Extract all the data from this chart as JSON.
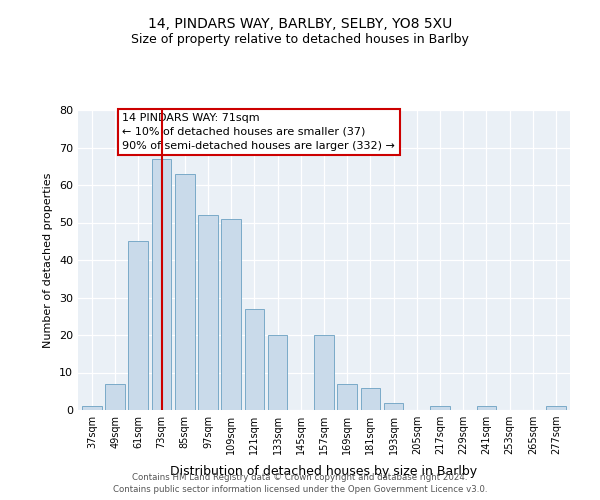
{
  "title1": "14, PINDARS WAY, BARLBY, SELBY, YO8 5XU",
  "title2": "Size of property relative to detached houses in Barlby",
  "xlabel": "Distribution of detached houses by size in Barlby",
  "ylabel": "Number of detached properties",
  "bins": [
    "37sqm",
    "49sqm",
    "61sqm",
    "73sqm",
    "85sqm",
    "97sqm",
    "109sqm",
    "121sqm",
    "133sqm",
    "145sqm",
    "157sqm",
    "169sqm",
    "181sqm",
    "193sqm",
    "205sqm",
    "217sqm",
    "229sqm",
    "241sqm",
    "253sqm",
    "265sqm",
    "277sqm"
  ],
  "values": [
    1,
    7,
    45,
    67,
    63,
    52,
    51,
    27,
    20,
    0,
    20,
    7,
    6,
    2,
    0,
    1,
    0,
    1,
    0,
    0,
    1
  ],
  "bar_color": "#c9daea",
  "bar_edge_color": "#7aaac8",
  "vline_index": 3,
  "vline_color": "#cc0000",
  "annotation_text": "14 PINDARS WAY: 71sqm\n← 10% of detached houses are smaller (37)\n90% of semi-detached houses are larger (332) →",
  "annotation_box_facecolor": "#ffffff",
  "annotation_box_edgecolor": "#cc0000",
  "ylim": [
    0,
    80
  ],
  "yticks": [
    0,
    10,
    20,
    30,
    40,
    50,
    60,
    70,
    80
  ],
  "footer1": "Contains HM Land Registry data © Crown copyright and database right 2024.",
  "footer2": "Contains public sector information licensed under the Open Government Licence v3.0.",
  "bg_color": "#eaf0f6"
}
